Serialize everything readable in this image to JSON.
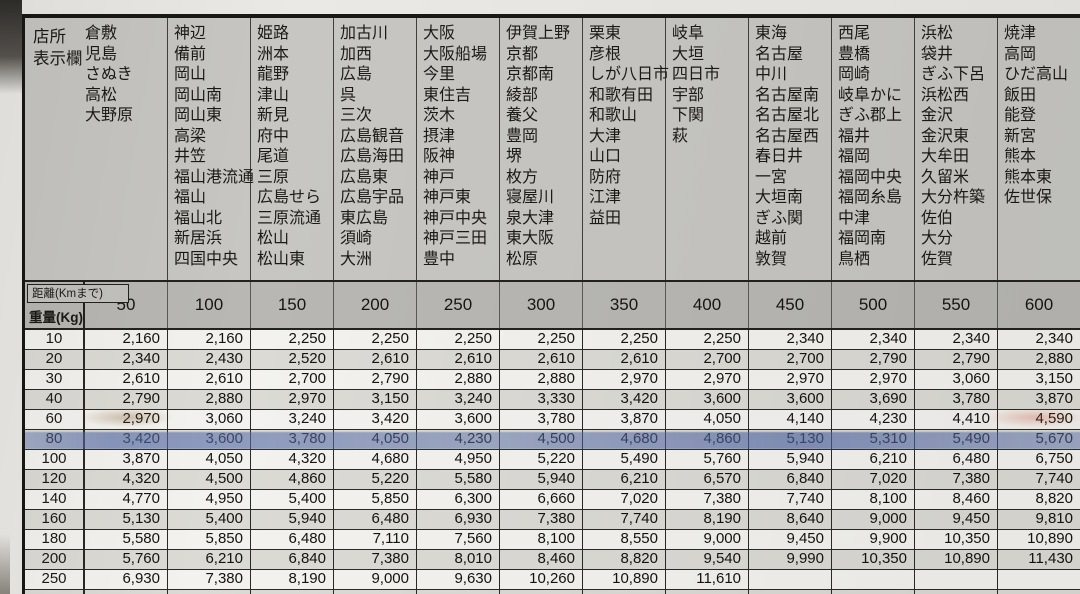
{
  "corner": {
    "store_label_line1": "店所",
    "store_label_line2": "表示欄",
    "distance_header_label": "距離(Kmまで)",
    "weight_header_label": "重量(Kg)"
  },
  "distance_columns": [
    {
      "distance": "50",
      "stores": [
        "倉敷",
        "児島",
        "さぬき",
        "高松",
        "大野原"
      ]
    },
    {
      "distance": "100",
      "stores": [
        "神辺",
        "備前",
        "岡山",
        "岡山南",
        "岡山東",
        "高梁",
        "井笠",
        "福山港流通",
        "福山",
        "福山北",
        "新居浜",
        "四国中央"
      ]
    },
    {
      "distance": "150",
      "stores": [
        "姫路",
        "洲本",
        "龍野",
        "津山",
        "新見",
        "府中",
        "尾道",
        "三原",
        "広島せら",
        "三原流通",
        "松山",
        "松山東"
      ]
    },
    {
      "distance": "200",
      "stores": [
        "加古川",
        "加西",
        "広島",
        "呉",
        "三次",
        "広島観音",
        "広島海田",
        "広島東",
        "広島宇品",
        "東広島",
        "須崎",
        "大洲"
      ]
    },
    {
      "distance": "250",
      "stores": [
        "大阪",
        "大阪船場",
        "今里",
        "東住吉",
        "茨木",
        "摂津",
        "阪神",
        "神戸",
        "神戸東",
        "神戸中央",
        "神戸三田",
        "豊中"
      ]
    },
    {
      "distance": "300",
      "stores": [
        "伊賀上野",
        "京都",
        "京都南",
        "綾部",
        "養父",
        "豊岡",
        "堺",
        "枚方",
        "寝屋川",
        "泉大津",
        "東大阪",
        "松原"
      ]
    },
    {
      "distance": "350",
      "stores": [
        "栗東",
        "彦根",
        "しが八日市",
        "和歌有田",
        "和歌山",
        "大津",
        "山口",
        "防府",
        "江津",
        "益田"
      ]
    },
    {
      "distance": "400",
      "stores": [
        "岐阜",
        "大垣",
        "四日市",
        "宇部",
        "下関",
        "萩"
      ]
    },
    {
      "distance": "450",
      "stores": [
        "東海",
        "名古屋",
        "中川",
        "名古屋南",
        "名古屋北",
        "名古屋西",
        "春日井",
        "一宮",
        "大垣南",
        "ぎふ関",
        "越前",
        "敦賀"
      ]
    },
    {
      "distance": "500",
      "stores": [
        "西尾",
        "豊橋",
        "岡崎",
        "岐阜かに",
        "ぎふ郡上",
        "福井",
        "福岡",
        "福岡中央",
        "福岡糸島",
        "中津",
        "福岡南",
        "鳥栖"
      ]
    },
    {
      "distance": "550",
      "stores": [
        "浜松",
        "袋井",
        "ぎふ下呂",
        "浜松西",
        "金沢",
        "金沢東",
        "大牟田",
        "久留米",
        "大分杵築",
        "佐伯",
        "大分",
        "佐賀"
      ]
    },
    {
      "distance": "600",
      "stores": [
        "焼津",
        "高岡",
        "ひだ高山",
        "飯田",
        "能登",
        "新宮",
        "熊本",
        "熊本東",
        "佐世保"
      ]
    }
  ],
  "rate_rows": [
    {
      "weight": "10",
      "rates": [
        "2,160",
        "2,160",
        "2,250",
        "2,250",
        "2,250",
        "2,250",
        "2,250",
        "2,250",
        "2,340",
        "2,340",
        "2,340",
        "2,340"
      ]
    },
    {
      "weight": "20",
      "rates": [
        "2,340",
        "2,430",
        "2,520",
        "2,610",
        "2,610",
        "2,610",
        "2,610",
        "2,700",
        "2,700",
        "2,790",
        "2,790",
        "2,880"
      ]
    },
    {
      "weight": "30",
      "rates": [
        "2,610",
        "2,610",
        "2,700",
        "2,790",
        "2,880",
        "2,880",
        "2,970",
        "2,970",
        "2,970",
        "2,970",
        "3,060",
        "3,150"
      ]
    },
    {
      "weight": "40",
      "rates": [
        "2,790",
        "2,880",
        "2,970",
        "3,150",
        "3,240",
        "3,330",
        "3,420",
        "3,600",
        "3,600",
        "3,690",
        "3,780",
        "3,870"
      ]
    },
    {
      "weight": "60",
      "rates": [
        "2,970",
        "3,060",
        "3,240",
        "3,420",
        "3,600",
        "3,780",
        "3,870",
        "4,050",
        "4,140",
        "4,230",
        "4,410",
        "4,590"
      ]
    },
    {
      "weight": "80",
      "rates": [
        "3,420",
        "3,600",
        "3,780",
        "4,050",
        "4,230",
        "4,500",
        "4,680",
        "4,860",
        "5,130",
        "5,310",
        "5,490",
        "5,670"
      ]
    },
    {
      "weight": "100",
      "rates": [
        "3,870",
        "4,050",
        "4,320",
        "4,680",
        "4,950",
        "5,220",
        "5,490",
        "5,760",
        "5,940",
        "6,210",
        "6,480",
        "6,750"
      ]
    },
    {
      "weight": "120",
      "rates": [
        "4,320",
        "4,500",
        "4,860",
        "5,220",
        "5,580",
        "5,940",
        "6,210",
        "6,570",
        "6,840",
        "7,020",
        "7,380",
        "7,740"
      ]
    },
    {
      "weight": "140",
      "rates": [
        "4,770",
        "4,950",
        "5,400",
        "5,850",
        "6,300",
        "6,660",
        "7,020",
        "7,380",
        "7,740",
        "8,100",
        "8,460",
        "8,820"
      ]
    },
    {
      "weight": "160",
      "rates": [
        "5,130",
        "5,400",
        "5,940",
        "6,480",
        "6,930",
        "7,380",
        "7,740",
        "8,190",
        "8,640",
        "9,000",
        "9,450",
        "9,810"
      ]
    },
    {
      "weight": "180",
      "rates": [
        "5,580",
        "5,850",
        "6,480",
        "7,110",
        "7,560",
        "8,100",
        "8,550",
        "9,000",
        "9,450",
        "9,900",
        "10,350",
        "10,890"
      ]
    },
    {
      "weight": "200",
      "rates": [
        "5,760",
        "6,210",
        "6,840",
        "7,380",
        "8,010",
        "8,460",
        "8,820",
        "9,540",
        "9,990",
        "10,350",
        "10,890",
        "11,430"
      ]
    },
    {
      "weight": "250",
      "rates": [
        "6,930",
        "7,380",
        "8,190",
        "9,000",
        "9,630",
        "10,260",
        "10,890",
        "11,610",
        "",
        "",
        "",
        ""
      ]
    }
  ],
  "partial_bottom_row": {
    "weight": "",
    "rates": [
      "",
      "",
      "",
      "",
      "",
      "",
      "",
      "",
      "",
      "",
      "",
      ""
    ]
  },
  "highlight": {
    "weight": "80",
    "marker_color": "#5a70af"
  },
  "colors": {
    "paper_names": "#c7c6c2",
    "band": "#b8b7b3",
    "row_light": "#f3f2ee",
    "row_dark": "#dbdad5",
    "ink": "#14130f"
  }
}
